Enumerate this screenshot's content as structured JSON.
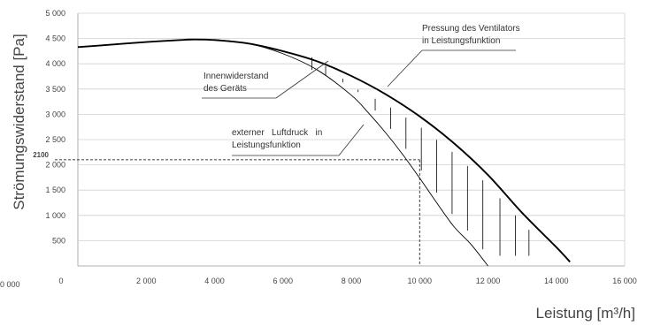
{
  "chart_data": {
    "type": "line",
    "title": "",
    "xlabel": "Leistung [m³/h]",
    "ylabel": "Strömungswiderstand [Pa]",
    "xlim": [
      0,
      16000
    ],
    "ylim": [
      0,
      5000
    ],
    "x_ticks": [
      0,
      2000,
      4000,
      6000,
      8000,
      10000,
      12000,
      14000,
      16000
    ],
    "x_tick_labels": [
      "0",
      "2 000",
      "4 000",
      "6 000",
      "8 000",
      "10 000",
      "12 000",
      "14 000",
      "16 000"
    ],
    "y_ticks": [
      500,
      1000,
      1500,
      2000,
      2500,
      3000,
      3500,
      4000,
      4500,
      5000
    ],
    "y_tick_labels": [
      "500",
      "1 000",
      "1 500",
      "2 000",
      "2 500",
      "3 000",
      "3 500",
      "4 000",
      "4 500",
      "5 000"
    ],
    "y_extra_tick_label": "0 000",
    "grid": "horizontal",
    "series": [
      {
        "name": "Pressung des Ventilators in Leistungsfunktion",
        "x": [
          0,
          1000,
          2000,
          3000,
          3300,
          4000,
          5000,
          6000,
          7000,
          8000,
          9000,
          10000,
          11000,
          12000,
          13000,
          14000,
          14400
        ],
        "y": [
          4330,
          4380,
          4430,
          4470,
          4480,
          4470,
          4400,
          4250,
          4050,
          3760,
          3400,
          2960,
          2430,
          1800,
          1050,
          370,
          80
        ],
        "color": "#000000",
        "width": 1.9
      },
      {
        "name": "Innenwiderstand des Geräts",
        "x": [
          4000,
          5000,
          6000,
          7000,
          8000,
          8500,
          9000,
          9500,
          10000,
          10500,
          11000,
          11500,
          12000
        ],
        "y": [
          4480,
          4400,
          4200,
          3880,
          3380,
          3030,
          2640,
          2210,
          1740,
          1250,
          780,
          430,
          0
        ],
        "color": "#000000",
        "width": 0.9
      }
    ],
    "hatch_x": [
      6850,
      7250,
      7750,
      8200,
      8700,
      9150,
      9600,
      10050,
      10500,
      10950,
      11400,
      11850,
      12350,
      12800,
      13200
    ],
    "operating_point": {
      "x": 10000,
      "y": 2100
    },
    "annotations": [
      "Pressung des Ventilators",
      "in Leistungsfunktion",
      "Innenwiderstand",
      "des Geräts",
      "externer   Luftdruck   in",
      "Leistungsfunktion"
    ],
    "operating_point_label": "2100",
    "colors": {
      "curve": "#000000",
      "grid": "#d0d0d0",
      "axis": "#999999",
      "text": "#444444"
    }
  }
}
